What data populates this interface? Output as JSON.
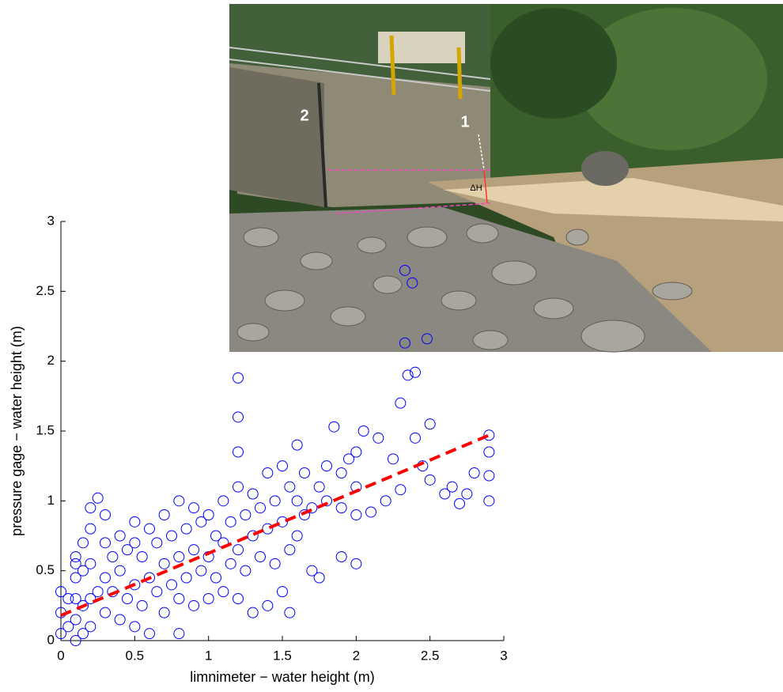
{
  "chart_data": {
    "type": "scatter",
    "xlabel": "limnimeter − water height (m)",
    "ylabel": "pressure gage − water height (m)",
    "xlim": [
      0,
      3
    ],
    "ylim": [
      0,
      3
    ],
    "xticks": [
      0,
      0.5,
      1,
      1.5,
      2,
      2.5,
      3
    ],
    "yticks": [
      0,
      0.5,
      1,
      1.5,
      2,
      2.5,
      3
    ],
    "annotations": [
      "2",
      "1",
      "ΔH"
    ],
    "series": [
      {
        "color": "#0000ff",
        "marker": "circle",
        "x": [
          0,
          0,
          0,
          0.05,
          0.05,
          0.1,
          0.1,
          0.1,
          0.1,
          0.1,
          0.15,
          0.15,
          0.15,
          0.15,
          0.2,
          0.2,
          0.2,
          0.2,
          0.2,
          0.25,
          0.3,
          0.3,
          0.3,
          0.3,
          0.35,
          0.35,
          0.4,
          0.4,
          0.4,
          0.45,
          0.45,
          0.5,
          0.5,
          0.5,
          0.5,
          0.55,
          0.55,
          0.6,
          0.6,
          0.6,
          0.65,
          0.65,
          0.7,
          0.7,
          0.7,
          0.75,
          0.75,
          0.8,
          0.8,
          0.8,
          0.8,
          0.85,
          0.85,
          0.9,
          0.9,
          0.9,
          0.95,
          0.95,
          1.0,
          1.0,
          1.0,
          1.05,
          1.05,
          1.1,
          1.1,
          1.1,
          1.15,
          1.15,
          1.2,
          1.2,
          1.2,
          1.2,
          1.2,
          1.2,
          1.25,
          1.25,
          1.3,
          1.3,
          1.3,
          1.35,
          1.35,
          1.4,
          1.4,
          1.4,
          1.45,
          1.45,
          1.5,
          1.5,
          1.5,
          1.55,
          1.55,
          1.6,
          1.6,
          1.6,
          1.65,
          1.65,
          1.7,
          1.7,
          1.75,
          1.75,
          1.8,
          1.8,
          1.85,
          1.9,
          1.9,
          1.95,
          2.0,
          2.0,
          2.0,
          2.0,
          2.05,
          2.1,
          2.15,
          2.2,
          2.25,
          2.3,
          2.35,
          2.4,
          2.45,
          2.5,
          2.5,
          2.6,
          2.65,
          2.7,
          2.75,
          2.8,
          2.9,
          2.9,
          2.9,
          2.9,
          2.4,
          2.3,
          1.9,
          1.55,
          0.1,
          0.25,
          2.33,
          2.38,
          2.33,
          2.48
        ],
        "y": [
          0.05,
          0.2,
          0.35,
          0.1,
          0.3,
          0.0,
          0.15,
          0.3,
          0.45,
          0.6,
          0.05,
          0.25,
          0.5,
          0.7,
          0.1,
          0.3,
          0.55,
          0.8,
          0.95,
          1.02,
          0.2,
          0.45,
          0.7,
          0.9,
          0.35,
          0.6,
          0.15,
          0.5,
          0.75,
          0.3,
          0.65,
          0.1,
          0.4,
          0.7,
          0.85,
          0.25,
          0.6,
          0.05,
          0.45,
          0.8,
          0.35,
          0.7,
          0.2,
          0.55,
          0.9,
          0.4,
          0.75,
          0.05,
          0.3,
          0.6,
          1.0,
          0.45,
          0.8,
          0.25,
          0.65,
          0.95,
          0.5,
          0.85,
          0.3,
          0.6,
          0.9,
          0.45,
          0.75,
          0.35,
          0.7,
          1.0,
          0.55,
          0.85,
          0.3,
          0.65,
          1.1,
          1.35,
          1.6,
          1.88,
          0.5,
          0.9,
          0.2,
          0.75,
          1.05,
          0.6,
          0.95,
          0.25,
          0.8,
          1.2,
          0.55,
          1.0,
          0.35,
          0.85,
          1.25,
          0.65,
          1.1,
          0.75,
          1.0,
          1.4,
          0.9,
          1.2,
          0.5,
          0.95,
          0.45,
          1.1,
          1.0,
          1.25,
          1.53,
          0.95,
          1.2,
          1.3,
          0.55,
          0.9,
          1.1,
          1.35,
          1.5,
          0.92,
          1.45,
          1.0,
          1.3,
          1.08,
          1.9,
          1.45,
          1.25,
          1.15,
          1.55,
          1.05,
          1.1,
          0.98,
          1.05,
          1.2,
          1.0,
          1.18,
          1.35,
          1.47,
          1.92,
          1.7,
          0.6,
          0.2,
          0.55,
          0.35,
          2.65,
          2.56,
          2.13,
          2.16
        ]
      },
      {
        "color": "#ff0000",
        "style": "dashed",
        "x": [
          0,
          2.9
        ],
        "y": [
          0.18,
          1.47
        ]
      }
    ]
  }
}
